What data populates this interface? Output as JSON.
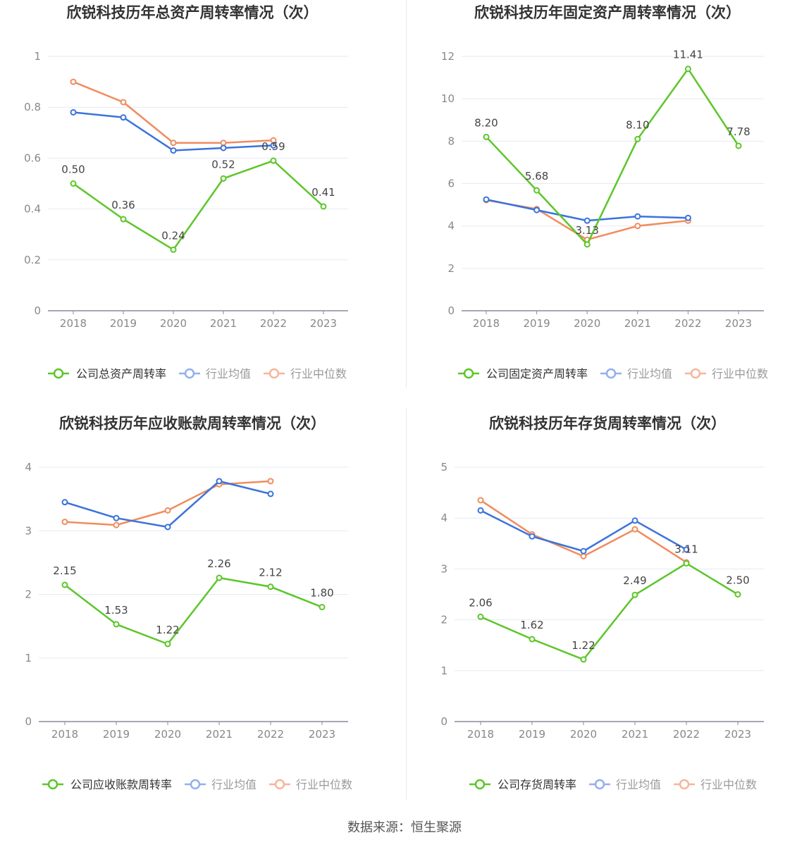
{
  "colors": {
    "company": "#5cc62a",
    "avg": "#3a73dc",
    "median": "#f08c5e",
    "avg_legend": "#92b0ec",
    "median_legend": "#f5b69b",
    "axis": "#8a8a9a",
    "grid": "#e6e9f2",
    "tick_text": "#888888",
    "label_text": "#444444",
    "title_text": "#333333"
  },
  "footer": {
    "source_label": "数据来源：恒生聚源"
  },
  "chart_data": [
    {
      "type": "line",
      "title": "欣锐科技历年总资产周转率情况（次）",
      "categories": [
        "2018",
        "2019",
        "2020",
        "2021",
        "2022",
        "2023"
      ],
      "ylim": [
        0,
        1
      ],
      "yticks": [
        "0",
        "0.2",
        "0.4",
        "0.6",
        "0.8",
        "1"
      ],
      "ytick_values": [
        0,
        0.2,
        0.4,
        0.6,
        0.8,
        1
      ],
      "series": [
        {
          "name": "公司总资产周转率",
          "role": "company",
          "values": [
            0.5,
            0.36,
            0.24,
            0.52,
            0.59,
            0.41
          ],
          "labels": [
            "0.50",
            "0.36",
            "0.24",
            "0.52",
            "0.59",
            "0.41"
          ]
        },
        {
          "name": "行业均值",
          "role": "avg",
          "values": [
            0.78,
            0.76,
            0.63,
            0.64,
            0.65,
            null
          ]
        },
        {
          "name": "行业中位数",
          "role": "median",
          "values": [
            0.9,
            0.82,
            0.66,
            0.66,
            0.67,
            null
          ]
        }
      ]
    },
    {
      "type": "line",
      "title": "欣锐科技历年固定资产周转率情况（次）",
      "categories": [
        "2018",
        "2019",
        "2020",
        "2021",
        "2022",
        "2023"
      ],
      "ylim": [
        0,
        12
      ],
      "yticks": [
        "0",
        "2",
        "4",
        "6",
        "8",
        "10",
        "12"
      ],
      "ytick_values": [
        0,
        2,
        4,
        6,
        8,
        10,
        12
      ],
      "series": [
        {
          "name": "公司固定资产周转率",
          "role": "company",
          "values": [
            8.2,
            5.68,
            3.13,
            8.1,
            11.41,
            7.78
          ],
          "labels": [
            "8.20",
            "5.68",
            "3.13",
            "8.10",
            "11.41",
            "7.78"
          ]
        },
        {
          "name": "行业均值",
          "role": "avg",
          "values": [
            5.25,
            4.75,
            4.25,
            4.45,
            4.38,
            null
          ]
        },
        {
          "name": "行业中位数",
          "role": "median",
          "values": [
            5.22,
            4.8,
            3.35,
            4.0,
            4.25,
            null
          ]
        }
      ]
    },
    {
      "type": "line",
      "title": "欣锐科技历年应收账款周转率情况（次）",
      "categories": [
        "2018",
        "2019",
        "2020",
        "2021",
        "2022",
        "2023"
      ],
      "ylim": [
        0,
        4
      ],
      "yticks": [
        "0",
        "1",
        "2",
        "3",
        "4"
      ],
      "ytick_values": [
        0,
        1,
        2,
        3,
        4
      ],
      "series": [
        {
          "name": "公司应收账款周转率",
          "role": "company",
          "values": [
            2.15,
            1.53,
            1.22,
            2.26,
            2.12,
            1.8
          ],
          "labels": [
            "2.15",
            "1.53",
            "1.22",
            "2.26",
            "2.12",
            "1.80"
          ]
        },
        {
          "name": "行业均值",
          "role": "avg",
          "values": [
            3.45,
            3.2,
            3.06,
            3.78,
            3.58,
            null
          ]
        },
        {
          "name": "行业中位数",
          "role": "median",
          "values": [
            3.14,
            3.09,
            3.32,
            3.73,
            3.78,
            null
          ]
        }
      ]
    },
    {
      "type": "line",
      "title": "欣锐科技历年存货周转率情况（次）",
      "categories": [
        "2018",
        "2019",
        "2020",
        "2021",
        "2022",
        "2023"
      ],
      "ylim": [
        0,
        5
      ],
      "yticks": [
        "0",
        "1",
        "2",
        "3",
        "4",
        "5"
      ],
      "ytick_values": [
        0,
        1,
        2,
        3,
        4,
        5
      ],
      "series": [
        {
          "name": "公司存货周转率",
          "role": "company",
          "values": [
            2.06,
            1.62,
            1.22,
            2.49,
            3.11,
            2.5
          ],
          "labels": [
            "2.06",
            "1.62",
            "1.22",
            "2.49",
            "3.11",
            "2.50"
          ]
        },
        {
          "name": "行业均值",
          "role": "avg",
          "values": [
            4.15,
            3.64,
            3.35,
            3.95,
            3.38,
            null
          ]
        },
        {
          "name": "行业中位数",
          "role": "median",
          "values": [
            4.35,
            3.68,
            3.25,
            3.78,
            3.13,
            null
          ]
        }
      ]
    }
  ]
}
